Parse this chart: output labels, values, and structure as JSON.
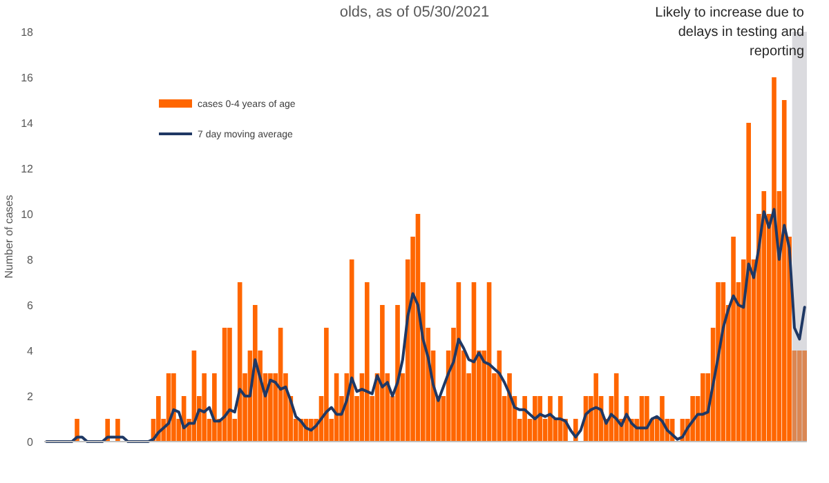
{
  "chart_data": {
    "type": "bar",
    "title": "olds, as of 05/30/2021",
    "ylabel": "Number of cases",
    "annotations": [
      "Likely to increase due to delays in testing and reporting"
    ],
    "categories": [
      null,
      null,
      null,
      null,
      null,
      null,
      null,
      null,
      null,
      null,
      null,
      null,
      null,
      null,
      null,
      null,
      null,
      null,
      null,
      null,
      null,
      null,
      null,
      null,
      null,
      null,
      null,
      null,
      null,
      null,
      null,
      null,
      null,
      null,
      null,
      null,
      null,
      null,
      null,
      null,
      null,
      null,
      null,
      null,
      null,
      null,
      null,
      null,
      null,
      null,
      null,
      null,
      null,
      null,
      null,
      null,
      null,
      null,
      null,
      null,
      null,
      null,
      null,
      null,
      null,
      null,
      null,
      null,
      null,
      null,
      null,
      null,
      null,
      null,
      null,
      null,
      null,
      null,
      null,
      null,
      null,
      null,
      null,
      null,
      null,
      null,
      null,
      null,
      null,
      null,
      null,
      null,
      null,
      null,
      null,
      null,
      null,
      null,
      null,
      null,
      null,
      null,
      null,
      null,
      null,
      null,
      null,
      null,
      null,
      null,
      null,
      null,
      null,
      null,
      null,
      null,
      null,
      null,
      null,
      null,
      null,
      null,
      null,
      null,
      null,
      null,
      null,
      null,
      null,
      null,
      null,
      null,
      null,
      null,
      null,
      null,
      null,
      null,
      null,
      null,
      null,
      null,
      null,
      null,
      null,
      null,
      null,
      null,
      null,
      null
    ],
    "series": [
      {
        "name": "cases 0-4 years of age",
        "color": "#ff6600",
        "values": [
          0,
          0,
          0,
          0,
          0,
          0,
          1,
          0,
          0,
          0,
          0,
          0,
          1,
          0,
          1,
          0,
          0,
          0,
          0,
          0,
          0,
          1,
          2,
          1,
          3,
          3,
          1,
          2,
          1,
          4,
          2,
          3,
          1,
          3,
          1,
          5,
          5,
          1,
          7,
          3,
          4,
          6,
          4,
          3,
          3,
          3,
          5,
          3,
          2,
          1,
          1,
          1,
          1,
          1,
          2,
          5,
          1,
          3,
          2,
          3,
          8,
          2,
          3,
          7,
          2,
          3,
          6,
          3,
          2,
          6,
          3,
          8,
          9,
          10,
          7,
          5,
          4,
          2,
          2,
          4,
          5,
          7,
          4,
          3,
          7,
          4,
          4,
          7,
          3,
          4,
          2,
          3,
          2,
          1,
          2,
          1,
          2,
          2,
          1,
          2,
          1,
          2,
          1,
          0,
          1,
          0,
          2,
          2,
          3,
          2,
          1,
          2,
          3,
          1,
          2,
          1,
          1,
          2,
          2,
          1,
          1,
          2,
          1,
          1,
          0,
          1,
          1,
          2,
          2,
          3,
          3,
          5,
          7,
          7,
          6,
          9,
          7,
          8,
          14,
          8,
          10,
          11,
          10,
          16,
          11,
          15,
          9,
          4,
          4,
          4
        ]
      },
      {
        "name": "7 day moving average",
        "type": "line",
        "color": "#1f3864",
        "values": [
          0,
          0,
          0,
          0,
          0,
          0,
          0.2,
          0.2,
          0,
          0,
          0,
          0,
          0.2,
          0.2,
          0.2,
          0.2,
          0,
          0,
          0,
          0,
          0,
          0.1,
          0.4,
          0.6,
          0.8,
          1.4,
          1.3,
          0.6,
          0.8,
          0.8,
          1.4,
          1.3,
          1.5,
          0.9,
          0.9,
          1.1,
          1.4,
          1.3,
          2.3,
          2.0,
          2.0,
          3.6,
          2.8,
          2.0,
          2.7,
          2.6,
          2.3,
          2.4,
          1.8,
          1.1,
          0.9,
          0.6,
          0.5,
          0.7,
          1.0,
          1.3,
          1.5,
          1.2,
          1.2,
          1.8,
          2.8,
          2.2,
          2.3,
          2.2,
          2.1,
          2.9,
          2.4,
          2.6,
          2.0,
          2.6,
          3.6,
          5.5,
          6.5,
          6.0,
          4.5,
          3.7,
          2.5,
          1.8,
          2.4,
          3.0,
          3.5,
          4.5,
          4.1,
          3.6,
          3.5,
          3.9,
          3.5,
          3.4,
          3.2,
          3.0,
          2.6,
          2.1,
          1.5,
          1.4,
          1.4,
          1.2,
          1.0,
          1.2,
          1.1,
          1.2,
          1.0,
          1.0,
          0.9,
          0.5,
          0.2,
          0.5,
          1.2,
          1.4,
          1.5,
          1.4,
          0.8,
          1.2,
          1.0,
          0.7,
          1.2,
          0.8,
          0.6,
          0.6,
          0.6,
          1.0,
          1.1,
          0.9,
          0.5,
          0.3,
          0.1,
          0.2,
          0.6,
          0.9,
          1.2,
          1.2,
          1.3,
          2.5,
          3.7,
          5.0,
          5.8,
          6.4,
          6.0,
          5.9,
          7.8,
          7.2,
          8.5,
          10.1,
          9.4,
          10.2,
          8.0,
          9.5,
          8.5,
          5.0,
          4.5,
          5.9
        ]
      }
    ],
    "ylim": [
      0,
      18
    ],
    "yticks": [
      0,
      2,
      4,
      6,
      8,
      10,
      12,
      14,
      16,
      18
    ],
    "grid": false,
    "legend": "top left",
    "line_style": "solid",
    "marker": "none"
  }
}
